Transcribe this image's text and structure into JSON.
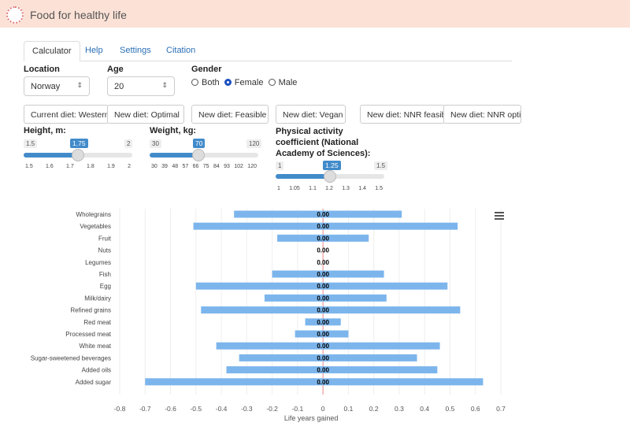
{
  "header": {
    "title": "Food for healthy life",
    "logo_icon": "dotted-circle-logo"
  },
  "tabs": [
    {
      "label": "Calculator",
      "active": true
    },
    {
      "label": "Help"
    },
    {
      "label": "Settings"
    },
    {
      "label": "Citation"
    }
  ],
  "location": {
    "label": "Location",
    "value": "Norway"
  },
  "age": {
    "label": "Age",
    "value": "20"
  },
  "gender": {
    "label": "Gender",
    "options": [
      "Both",
      "Female",
      "Male"
    ],
    "selected": "Female"
  },
  "diet_buttons": [
    "Current diet: Western",
    "New diet: Optimal",
    "New diet: Feasible",
    "New diet: Vegan",
    "New diet: NNR feasible",
    "New diet: NNR optimal"
  ],
  "height": {
    "label": "Height, m:",
    "min": "1.5",
    "max": "2",
    "value": "1.75",
    "ticks": [
      "1.5",
      "1.6",
      "1.7",
      "1.8",
      "1.9",
      "2"
    ]
  },
  "weight": {
    "label": "Weight, kg:",
    "min": "30",
    "max": "120",
    "value": "70",
    "ticks": [
      "30",
      "39",
      "48",
      "57",
      "66",
      "75",
      "84",
      "93",
      "102",
      "120"
    ]
  },
  "activity": {
    "label": "Physical activity coefficient (National Academy of Sciences):",
    "min": "1",
    "max": "1.5",
    "value": "1.25",
    "ticks": [
      "1",
      "1.05",
      "1.1",
      "1.2",
      "1.3",
      "1.4",
      "1.5"
    ]
  },
  "chart_data": {
    "type": "bar",
    "orientation": "horizontal",
    "categories": [
      "Wholegrains",
      "Vegetables",
      "Fruit",
      "Nuts",
      "Legumes",
      "Fish",
      "Egg",
      "Milk/dairy",
      "Refined grains",
      "Red meat",
      "Processed meat",
      "White meat",
      "Sugar-sweetened beverages",
      "Added oils",
      "Added sugar"
    ],
    "low": [
      -0.35,
      -0.51,
      -0.18,
      0,
      0,
      -0.2,
      -0.5,
      -0.23,
      -0.48,
      -0.07,
      -0.11,
      -0.42,
      -0.33,
      -0.38,
      -0.7
    ],
    "high": [
      0.31,
      0.53,
      0.18,
      0,
      0,
      0.24,
      0.49,
      0.25,
      0.54,
      0.07,
      0.1,
      0.46,
      0.37,
      0.45,
      0.63
    ],
    "data_labels": [
      "0.00",
      "0.00",
      "0.00",
      "0.00",
      "0.00",
      "0.00",
      "0.00",
      "0.00",
      "0.00",
      "0.00",
      "0.00",
      "0.00",
      "0.00",
      "0.00",
      "0.00"
    ],
    "xlabel": "Life years gained",
    "xlim": [
      -0.8,
      0.7
    ],
    "xticks": [
      "-0.8",
      "-0.7",
      "-0.6",
      "-0.5",
      "-0.4",
      "-0.3",
      "-0.2",
      "-0.1",
      "0",
      "0.1",
      "0.2",
      "0.3",
      "0.4",
      "0.5",
      "0.6",
      "0.7"
    ],
    "grid": true,
    "bar_color": "#7cb5ec",
    "menu_icon": "hamburger-icon"
  }
}
